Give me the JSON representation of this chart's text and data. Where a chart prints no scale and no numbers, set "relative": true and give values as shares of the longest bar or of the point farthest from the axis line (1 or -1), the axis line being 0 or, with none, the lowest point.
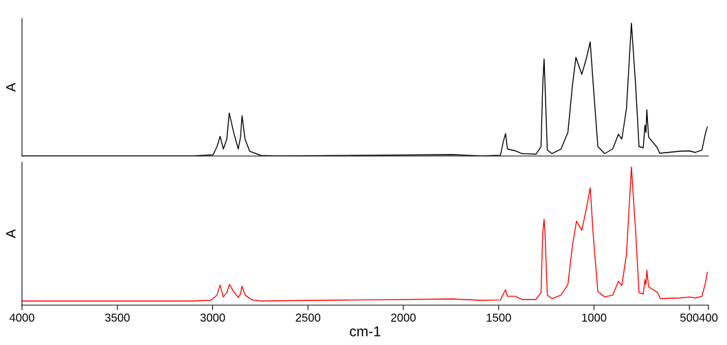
{
  "chart_data": [
    {
      "type": "line",
      "relative": true,
      "ylabel": "A",
      "xlim": [
        4000,
        400
      ],
      "tick_labels": false,
      "grid": false,
      "legend": false,
      "series": [
        {
          "color": "#000000",
          "x": [
            4000,
            3106,
            2998,
            2977,
            2961,
            2944,
            2926,
            2913,
            2890,
            2866,
            2854,
            2846,
            2830,
            2806,
            2746,
            2674,
            1740,
            1593,
            1491,
            1476,
            1464,
            1454,
            1413,
            1377,
            1305,
            1278,
            1269,
            1262,
            1257,
            1245,
            1221,
            1173,
            1137,
            1113,
            1095,
            1064,
            1041,
            1020,
            1004,
            980,
            944,
            902,
            872,
            854,
            830,
            804,
            782,
            764,
            742,
            733,
            728,
            723,
            714,
            668,
            656,
            548,
            500,
            470,
            434,
            416,
            406
          ],
          "values": [
            0,
            0,
            0.009,
            0.071,
            0.148,
            0.053,
            0.125,
            0.324,
            0.178,
            0.053,
            0.142,
            0.303,
            0.125,
            0.036,
            0.004,
            0,
            0.01,
            0,
            0.005,
            0.107,
            0.169,
            0.053,
            0.039,
            0.018,
            0.014,
            0.071,
            0.535,
            0.731,
            0.535,
            0.045,
            0.018,
            0.053,
            0.178,
            0.535,
            0.743,
            0.615,
            0.731,
            0.859,
            0.535,
            0.071,
            0.018,
            0.053,
            0.164,
            0.128,
            0.357,
            1,
            0.535,
            0.071,
            0.062,
            0.232,
            0.178,
            0.348,
            0.143,
            0.062,
            0.021,
            0.036,
            0.039,
            0.027,
            0.045,
            0.169,
            0.217
          ]
        }
      ]
    },
    {
      "type": "line",
      "relative": true,
      "ylabel": "A",
      "xlabel": "cm-1",
      "xlim": [
        4000,
        400
      ],
      "xticks": [
        4000,
        3500,
        3000,
        2500,
        2000,
        1500,
        1000,
        500,
        400
      ],
      "tick_labels": "x",
      "grid": false,
      "legend": false,
      "series": [
        {
          "color": "#ff0000",
          "x": [
            4000,
            3106,
            3010,
            2977,
            2961,
            2944,
            2926,
            2912,
            2890,
            2866,
            2854,
            2846,
            2830,
            2794,
            2746,
            1740,
            1593,
            1491,
            1476,
            1464,
            1454,
            1413,
            1377,
            1305,
            1278,
            1269,
            1262,
            1257,
            1245,
            1221,
            1173,
            1137,
            1113,
            1092,
            1064,
            1041,
            1020,
            1004,
            980,
            944,
            902,
            872,
            854,
            830,
            804,
            782,
            764,
            742,
            733,
            728,
            723,
            714,
            668,
            652,
            548,
            500,
            470,
            434,
            416,
            406
          ],
          "values": [
            0.03,
            0.03,
            0.035,
            0.073,
            0.145,
            0.059,
            0.09,
            0.15,
            0.099,
            0.055,
            0.081,
            0.138,
            0.073,
            0.038,
            0.03,
            0.045,
            0.035,
            0.038,
            0.081,
            0.111,
            0.064,
            0.064,
            0.041,
            0.041,
            0.09,
            0.522,
            0.622,
            0.522,
            0.073,
            0.047,
            0.073,
            0.15,
            0.435,
            0.608,
            0.542,
            0.694,
            0.85,
            0.504,
            0.098,
            0.059,
            0.073,
            0.173,
            0.142,
            0.366,
            1,
            0.539,
            0.09,
            0.081,
            0.185,
            0.15,
            0.254,
            0.133,
            0.093,
            0.047,
            0.052,
            0.059,
            0.052,
            0.064,
            0.159,
            0.237
          ]
        }
      ]
    }
  ]
}
